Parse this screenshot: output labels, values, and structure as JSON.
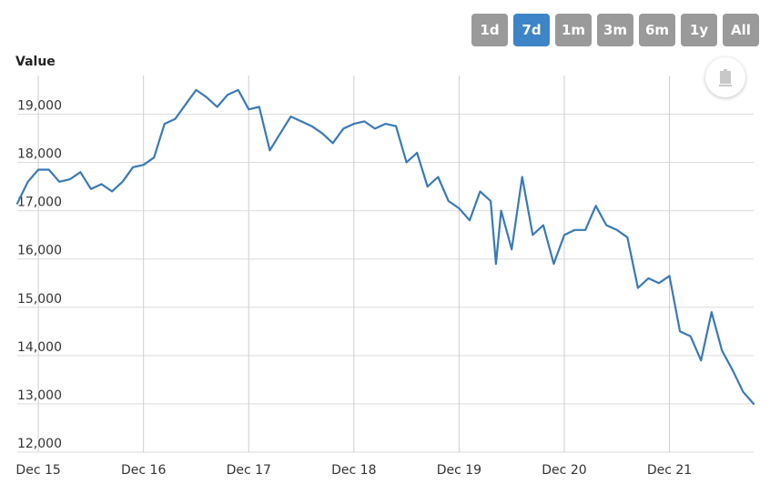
{
  "range_buttons": [
    {
      "label": "1d",
      "active": false
    },
    {
      "label": "7d",
      "active": true
    },
    {
      "label": "1m",
      "active": false
    },
    {
      "label": "3m",
      "active": false
    },
    {
      "label": "6m",
      "active": false
    },
    {
      "label": "1y",
      "active": false
    },
    {
      "label": "All",
      "active": false
    }
  ],
  "download_icon": "download-icon",
  "colors": {
    "series": "#3979b6",
    "active_button": "#3d85c6",
    "inactive_button": "#9a9a9a"
  },
  "chart_data": {
    "type": "line",
    "title": "",
    "xlabel": "",
    "ylabel": "Value",
    "ylim": [
      12000,
      19800
    ],
    "yticks": [
      12000,
      13000,
      14000,
      15000,
      16000,
      17000,
      18000,
      19000
    ],
    "ytick_labels": [
      "12,000",
      "13,000",
      "14,000",
      "15,000",
      "16,000",
      "17,000",
      "18,000",
      "19,000"
    ],
    "xlim": [
      -0.2,
      6.8
    ],
    "xticks": [
      0,
      1,
      2,
      3,
      4,
      5,
      6
    ],
    "xtick_labels": [
      "Dec 15",
      "Dec 16",
      "Dec 17",
      "Dec 18",
      "Dec 19",
      "Dec 20",
      "Dec 21"
    ],
    "grid": true,
    "series": [
      {
        "x": [
          -0.2,
          -0.1,
          0,
          0.1,
          0.2,
          0.3,
          0.4,
          0.5,
          0.6,
          0.7,
          0.8,
          0.9,
          1,
          1.1,
          1.2,
          1.3,
          1.4,
          1.5,
          1.6,
          1.7,
          1.8,
          1.9,
          2,
          2.1,
          2.2,
          2.3,
          2.4,
          2.5,
          2.6,
          2.7,
          2.8,
          2.9,
          3,
          3.1,
          3.2,
          3.3,
          3.4,
          3.5,
          3.6,
          3.7,
          3.8,
          3.9,
          4,
          4.1,
          4.2,
          4.3,
          4.35,
          4.4,
          4.5,
          4.6,
          4.7,
          4.8,
          4.9,
          5,
          5.1,
          5.2,
          5.3,
          5.4,
          5.5,
          5.6,
          5.7,
          5.8,
          5.9,
          6,
          6.1,
          6.2,
          6.3,
          6.4,
          6.5,
          6.6,
          6.7,
          6.8
        ],
        "y": [
          17150,
          17600,
          17850,
          17850,
          17600,
          17650,
          17800,
          17450,
          17550,
          17400,
          17600,
          17900,
          17950,
          18100,
          18800,
          18900,
          19200,
          19500,
          19350,
          19150,
          19400,
          19500,
          19100,
          19150,
          18250,
          18600,
          18950,
          18850,
          18750,
          18600,
          18400,
          18700,
          18800,
          18850,
          18700,
          18800,
          18750,
          18000,
          18200,
          17500,
          17700,
          17200,
          17050,
          16800,
          17400,
          17200,
          15900,
          17000,
          16200,
          17700,
          16500,
          16700,
          15900,
          16500,
          16600,
          16600,
          17100,
          16700,
          16600,
          16450,
          15400,
          15600,
          15500,
          15650,
          14500,
          14400,
          13900,
          14900,
          14100,
          13700,
          13250,
          13000
        ]
      }
    ]
  }
}
